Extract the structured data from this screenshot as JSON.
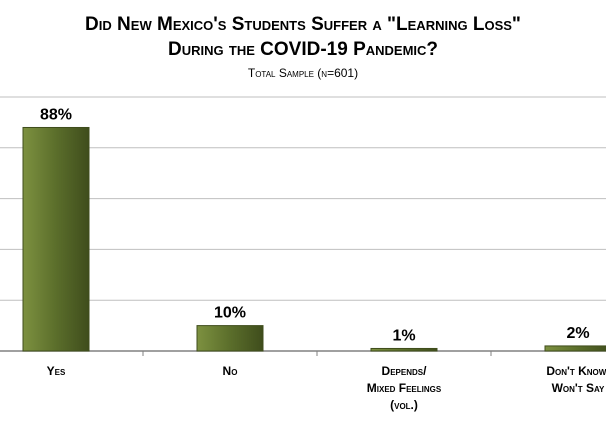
{
  "chart_data": {
    "type": "bar",
    "title_line_1": "Did New Mexico's Students Suffer a \"Learning Loss\"",
    "title_line_2": "During the COVID-19 Pandemic?",
    "subtitle": "Total Sample (n=601)",
    "categories": [
      [
        "Yes"
      ],
      [
        "No"
      ],
      [
        "Depends/",
        "Mixed Feelings",
        "(vol.)"
      ],
      [
        "Don't Know/",
        "Won't Say"
      ]
    ],
    "values": [
      88,
      10,
      1,
      2
    ],
    "value_labels": [
      "88%",
      "10%",
      "1%",
      "2%"
    ],
    "ylim": [
      0,
      100
    ],
    "grid": true,
    "colors": {
      "bar": "#5b6e2b",
      "bar_light": "#7d9140",
      "bar_dark": "#3f4d1c",
      "grid": "#bfbfbf",
      "axis": "#808080"
    }
  }
}
